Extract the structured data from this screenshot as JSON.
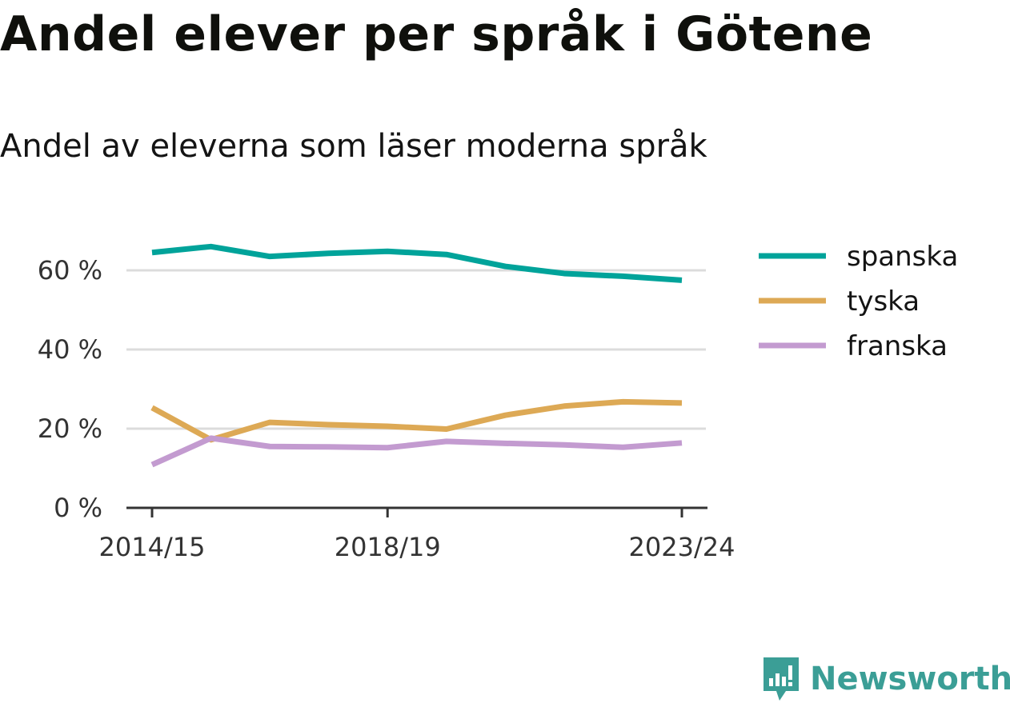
{
  "title": "Andel elever per språk i Götene",
  "subtitle": "Andel av eleverna som läser moderna språk",
  "brand": "Newsworthy",
  "colors": {
    "spanska": "#00a39a",
    "tyska": "#dda955",
    "franska": "#c39bd0",
    "brand": "#3b9e96"
  },
  "chart_data": {
    "type": "line",
    "x": [
      "2014/15",
      "2015/16",
      "2016/17",
      "2017/18",
      "2018/19",
      "2019/20",
      "2020/21",
      "2021/22",
      "2022/23",
      "2023/24"
    ],
    "x_tick_labels": [
      "2014/15",
      "2018/19",
      "2023/24"
    ],
    "y_tick_labels": [
      "0 %",
      "20 %",
      "40 %",
      "60 %"
    ],
    "y_ticks": [
      0,
      20,
      40,
      60
    ],
    "ylim": [
      0,
      70
    ],
    "grid": true,
    "legend_position": "right",
    "series": [
      {
        "name": "spanska",
        "values": [
          64.5,
          66,
          63.5,
          64.3,
          64.8,
          64,
          61,
          59.2,
          58.5,
          57.5
        ]
      },
      {
        "name": "tyska",
        "values": [
          25.3,
          17.2,
          21.6,
          21,
          20.6,
          19.9,
          23.4,
          25.7,
          26.8,
          26.5
        ]
      },
      {
        "name": "franska",
        "values": [
          10.9,
          17.6,
          15.5,
          15.4,
          15.2,
          16.8,
          16.3,
          15.9,
          15.3,
          16.4
        ]
      }
    ]
  }
}
